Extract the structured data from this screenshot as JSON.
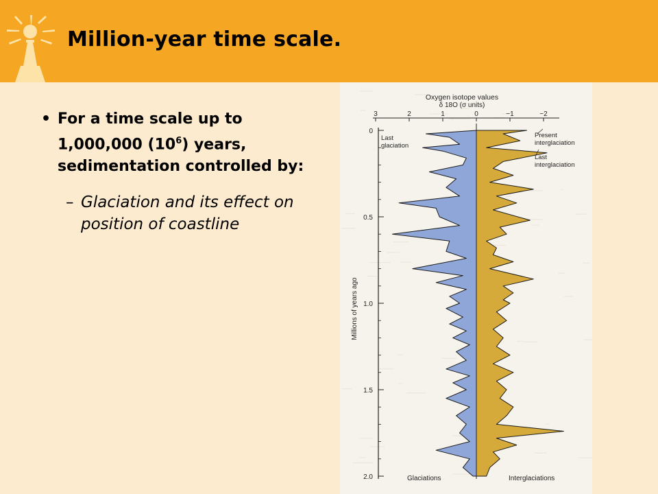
{
  "header": {
    "title": "Million-year time scale."
  },
  "bullets": [
    {
      "dot": "•",
      "text_before_sup": "For a time scale up to 1,000,000 (10",
      "sup": "6",
      "text_after_sup": ") years, sedimentation controlled by:",
      "sub": {
        "dash": "–",
        "text": "Glaciation and its effect on position of coastline"
      }
    }
  ],
  "colors": {
    "header_bg": "#f5a623",
    "slide_bg": "#fdebd0",
    "glaciation_fill": "#8fa6d8",
    "interglaciation_fill": "#d6aa3a"
  },
  "chart_data": {
    "type": "area",
    "orientation": "vertical",
    "title": "Oxygen isotope values",
    "subtitle": "δ 18O (σ units)",
    "ylabel": "Millions of years ago",
    "x_ticks": [
      "3",
      "2",
      "1",
      "0",
      "−1",
      "−2"
    ],
    "x_tick_values": [
      3,
      2,
      1,
      0,
      -1,
      -2
    ],
    "y_ticks": [
      "0",
      "0.5",
      "1.0",
      "1.5",
      "2.0"
    ],
    "y_tick_values": [
      0,
      0.5,
      1.0,
      1.5,
      2.0
    ],
    "xlim": [
      3,
      -2.4
    ],
    "ylim": [
      0,
      2.0
    ],
    "x_inverted": true,
    "baseline": 0,
    "annotations": [
      "Last glaciation",
      "Present interglaciation",
      "Last interglaciation"
    ],
    "bottom_labels": [
      "Glaciations",
      "Interglaciations"
    ],
    "series": [
      {
        "name": "Glaciations",
        "color": "#8fa6d8",
        "points": [
          [
            0,
            0
          ],
          [
            0.02,
            1.5
          ],
          [
            0.04,
            0.8
          ],
          [
            0.08,
            0.5
          ],
          [
            0.1,
            1.6
          ],
          [
            0.12,
            1.0
          ],
          [
            0.16,
            0.3
          ],
          [
            0.2,
            0.4
          ],
          [
            0.24,
            1.4
          ],
          [
            0.28,
            0.6
          ],
          [
            0.33,
            0.9
          ],
          [
            0.38,
            0.5
          ],
          [
            0.42,
            2.3
          ],
          [
            0.45,
            1.2
          ],
          [
            0.5,
            1.1
          ],
          [
            0.55,
            0.5
          ],
          [
            0.6,
            2.5
          ],
          [
            0.64,
            0.8
          ],
          [
            0.7,
            0.9
          ],
          [
            0.74,
            0.3
          ],
          [
            0.8,
            1.9
          ],
          [
            0.84,
            0.4
          ],
          [
            0.88,
            1.2
          ],
          [
            0.92,
            0.3
          ],
          [
            0.96,
            0.8
          ],
          [
            1.0,
            0.5
          ],
          [
            1.03,
            0.9
          ],
          [
            1.08,
            0.4
          ],
          [
            1.12,
            0.8
          ],
          [
            1.16,
            0.3
          ],
          [
            1.2,
            0.7
          ],
          [
            1.24,
            0.2
          ],
          [
            1.28,
            0.6
          ],
          [
            1.33,
            0.3
          ],
          [
            1.38,
            0.9
          ],
          [
            1.42,
            0.2
          ],
          [
            1.46,
            0.7
          ],
          [
            1.5,
            0.3
          ],
          [
            1.55,
            0.9
          ],
          [
            1.6,
            0.2
          ],
          [
            1.65,
            0.6
          ],
          [
            1.7,
            0.3
          ],
          [
            1.75,
            0.5
          ],
          [
            1.8,
            0.2
          ],
          [
            1.85,
            1.2
          ],
          [
            1.9,
            0.2
          ],
          [
            1.95,
            0.4
          ],
          [
            2.0,
            0.1
          ]
        ]
      },
      {
        "name": "Interglaciations",
        "color": "#d6aa3a",
        "points": [
          [
            0,
            -1.5
          ],
          [
            0.02,
            -0.8
          ],
          [
            0.06,
            -1.3
          ],
          [
            0.1,
            -0.3
          ],
          [
            0.13,
            -2.1
          ],
          [
            0.18,
            -0.8
          ],
          [
            0.22,
            -0.5
          ],
          [
            0.26,
            -1.1
          ],
          [
            0.3,
            -0.4
          ],
          [
            0.34,
            -1.7
          ],
          [
            0.38,
            -0.6
          ],
          [
            0.42,
            -1.2
          ],
          [
            0.46,
            -0.5
          ],
          [
            0.52,
            -1.6
          ],
          [
            0.56,
            -0.7
          ],
          [
            0.6,
            -0.9
          ],
          [
            0.64,
            -0.3
          ],
          [
            0.68,
            -0.6
          ],
          [
            0.72,
            -0.5
          ],
          [
            0.76,
            -1.1
          ],
          [
            0.8,
            -0.4
          ],
          [
            0.86,
            -1.7
          ],
          [
            0.9,
            -0.8
          ],
          [
            0.94,
            -1.1
          ],
          [
            0.98,
            -0.8
          ],
          [
            1.0,
            -1.0
          ],
          [
            1.05,
            -0.6
          ],
          [
            1.1,
            -0.9
          ],
          [
            1.15,
            -0.5
          ],
          [
            1.2,
            -0.8
          ],
          [
            1.25,
            -0.6
          ],
          [
            1.3,
            -1.0
          ],
          [
            1.35,
            -0.5
          ],
          [
            1.4,
            -1.1
          ],
          [
            1.45,
            -0.6
          ],
          [
            1.5,
            -0.9
          ],
          [
            1.55,
            -0.7
          ],
          [
            1.6,
            -1.1
          ],
          [
            1.65,
            -0.9
          ],
          [
            1.7,
            -0.6
          ],
          [
            1.74,
            -2.6
          ],
          [
            1.78,
            -0.6
          ],
          [
            1.82,
            -1.2
          ],
          [
            1.86,
            -0.5
          ],
          [
            1.9,
            -0.7
          ],
          [
            1.95,
            -0.4
          ],
          [
            2.0,
            -0.3
          ]
        ]
      }
    ]
  }
}
